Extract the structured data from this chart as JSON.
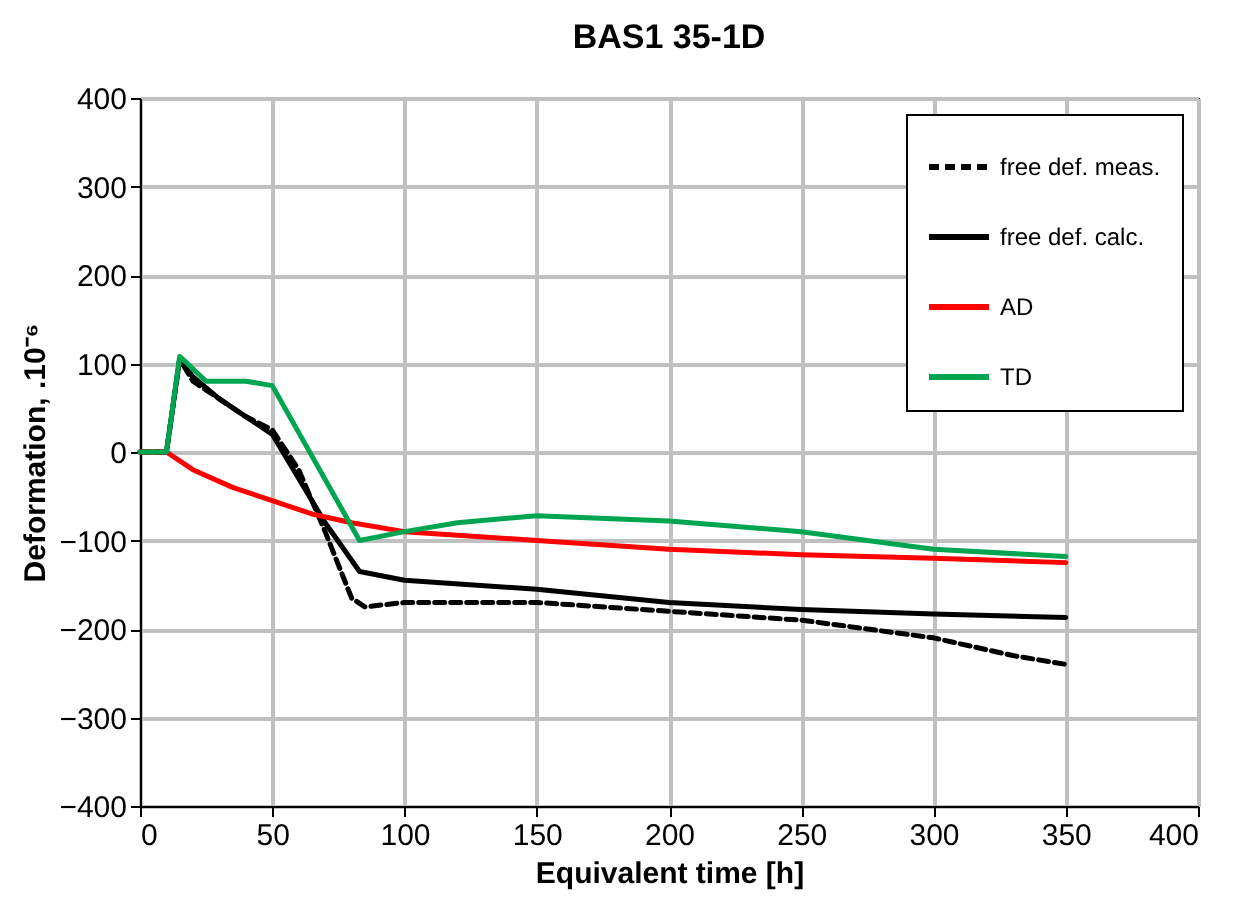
{
  "chart_data": {
    "type": "line",
    "title": "BAS1 35-1D",
    "xlabel": "Equivalent time [h]",
    "ylabel": "Deformation, .10⁻⁶",
    "xlim": [
      0,
      400
    ],
    "xticks": [
      0,
      50,
      100,
      150,
      200,
      250,
      300,
      350,
      400
    ],
    "ylim": [
      -400,
      400
    ],
    "yticks": [
      -400,
      -300,
      -200,
      -100,
      0,
      100,
      200,
      300,
      400
    ],
    "grid": true,
    "legend": "top right",
    "marker": "none",
    "series": [
      {
        "name": "free def. meas.",
        "color": "#000000",
        "line_style": "dashed",
        "x": [
          0,
          10,
          15,
          20,
          30,
          40,
          50,
          60,
          70,
          80,
          85,
          100,
          150,
          200,
          250,
          300,
          330,
          350
        ],
        "values": [
          0,
          0,
          105,
          80,
          60,
          40,
          25,
          -20,
          -90,
          -165,
          -175,
          -170,
          -170,
          -180,
          -190,
          -210,
          -230,
          -240
        ]
      },
      {
        "name": "free def. calc.",
        "color": "#000000",
        "line_style": "solid",
        "x": [
          0,
          10,
          15,
          20,
          30,
          40,
          50,
          60,
          70,
          83,
          100,
          150,
          200,
          250,
          300,
          350
        ],
        "values": [
          0,
          0,
          105,
          85,
          60,
          40,
          20,
          -30,
          -80,
          -135,
          -145,
          -155,
          -170,
          -178,
          -183,
          -187
        ]
      },
      {
        "name": "AD",
        "color": "#ff0000",
        "line_style": "solid",
        "x": [
          0,
          10,
          20,
          35,
          50,
          65,
          80,
          100,
          150,
          200,
          250,
          300,
          350
        ],
        "values": [
          0,
          0,
          -20,
          -40,
          -55,
          -70,
          -80,
          -90,
          -100,
          -110,
          -116,
          -120,
          -125
        ]
      },
      {
        "name": "TD",
        "color": "#00a550",
        "line_style": "solid",
        "x": [
          0,
          10,
          15,
          25,
          40,
          50,
          83,
          100,
          120,
          150,
          200,
          250,
          300,
          350
        ],
        "values": [
          0,
          0,
          108,
          80,
          80,
          75,
          -100,
          -90,
          -80,
          -72,
          -78,
          -90,
          -110,
          -118
        ]
      }
    ]
  }
}
